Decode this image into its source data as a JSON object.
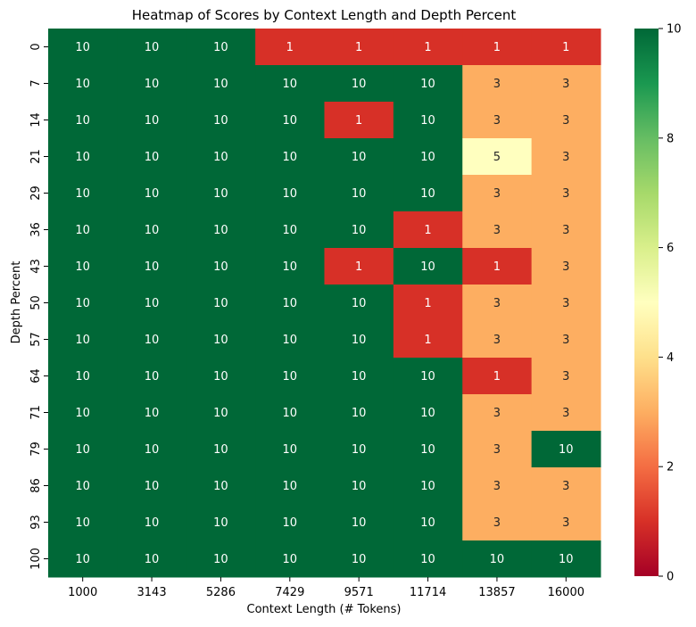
{
  "chart_data": {
    "type": "heatmap",
    "title": "Heatmap of Scores by Context Length and Depth Percent",
    "xlabel": "Context Length (# Tokens)",
    "ylabel": "Depth Percent",
    "x_categories": [
      "1000",
      "3143",
      "5286",
      "7429",
      "9571",
      "11714",
      "13857",
      "16000"
    ],
    "y_categories": [
      "0",
      "7",
      "14",
      "21",
      "29",
      "36",
      "43",
      "50",
      "57",
      "64",
      "71",
      "79",
      "86",
      "93",
      "100"
    ],
    "values": [
      [
        10,
        10,
        10,
        1,
        1,
        1,
        1,
        1
      ],
      [
        10,
        10,
        10,
        10,
        10,
        10,
        3,
        3
      ],
      [
        10,
        10,
        10,
        10,
        1,
        10,
        3,
        3
      ],
      [
        10,
        10,
        10,
        10,
        10,
        10,
        5,
        3
      ],
      [
        10,
        10,
        10,
        10,
        10,
        10,
        3,
        3
      ],
      [
        10,
        10,
        10,
        10,
        10,
        1,
        3,
        3
      ],
      [
        10,
        10,
        10,
        10,
        1,
        10,
        1,
        3
      ],
      [
        10,
        10,
        10,
        10,
        10,
        1,
        3,
        3
      ],
      [
        10,
        10,
        10,
        10,
        10,
        1,
        3,
        3
      ],
      [
        10,
        10,
        10,
        10,
        10,
        10,
        1,
        3
      ],
      [
        10,
        10,
        10,
        10,
        10,
        10,
        3,
        3
      ],
      [
        10,
        10,
        10,
        10,
        10,
        10,
        3,
        10
      ],
      [
        10,
        10,
        10,
        10,
        10,
        10,
        3,
        3
      ],
      [
        10,
        10,
        10,
        10,
        10,
        10,
        3,
        3
      ],
      [
        10,
        10,
        10,
        10,
        10,
        10,
        10,
        10
      ]
    ],
    "colormap": "RdYlGn",
    "colorbar": {
      "vmin": 0,
      "vmax": 10,
      "ticks": [
        "0",
        "2",
        "4",
        "6",
        "8",
        "10"
      ]
    },
    "annotations": true,
    "grid": false
  }
}
